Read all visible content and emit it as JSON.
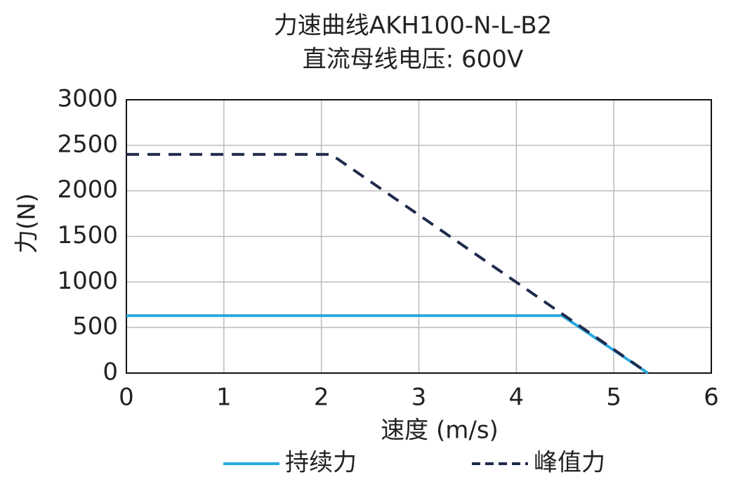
{
  "chart_data": {
    "type": "line",
    "title": "力速曲线AKH100-N-L-B2",
    "subtitle": "直流母线电压: 600V",
    "x_label": "速度 (m/s)",
    "y_label": "力(N)",
    "xlim": [
      0,
      6
    ],
    "xticks": [
      0,
      1,
      2,
      3,
      4,
      5,
      6
    ],
    "ylim": [
      0,
      3000
    ],
    "yticks": [
      0,
      500,
      1000,
      1500,
      2000,
      2500,
      3000
    ],
    "grid": true,
    "legend": "bottom",
    "series": [
      {
        "name": "持续力",
        "color": "#29a8e0",
        "dash": false,
        "x": [
          0,
          4.47,
          5.35
        ],
        "values": [
          630,
          630,
          0
        ]
      },
      {
        "name": "峰值力",
        "color": "#1f2a4d",
        "dash": true,
        "x": [
          0,
          2.1,
          5.35
        ],
        "values": [
          2400,
          2400,
          0
        ]
      }
    ]
  }
}
